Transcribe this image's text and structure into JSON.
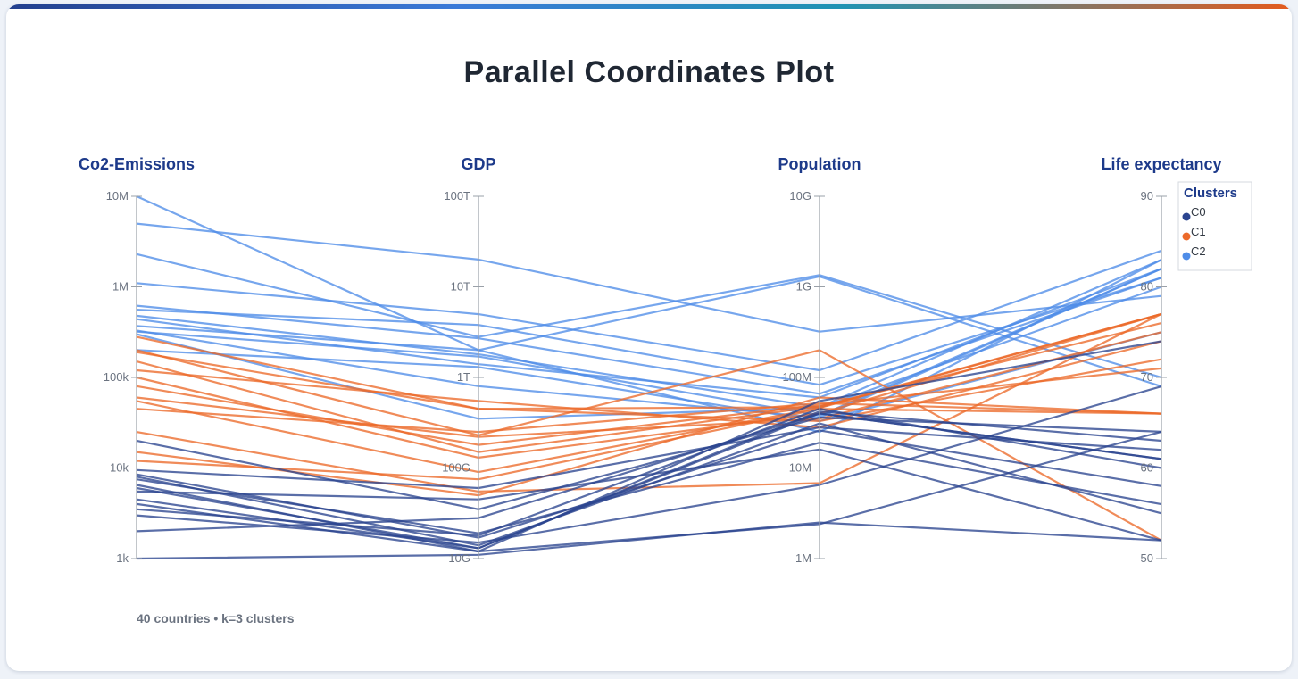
{
  "title": "Parallel Coordinates Plot",
  "footer": "40 countries • k=3 clusters",
  "colors": {
    "C0": "#2b4590",
    "C1": "#ec6a2a",
    "C2": "#4f8de8",
    "axis": "#9aa0a8",
    "accent_gradient": [
      "#23408e",
      "#3a7ad8",
      "#1f93b3",
      "#e45a1c"
    ]
  },
  "chart_data": {
    "type": "parallel-coordinates",
    "title": "Parallel Coordinates Plot",
    "axes": [
      {
        "name": "Co2-Emissions",
        "scale": "log",
        "range": [
          1000,
          10000000
        ],
        "ticks": [
          {
            "value": 10000000,
            "label": "10M"
          },
          {
            "value": 1000000,
            "label": "1M"
          },
          {
            "value": 100000,
            "label": "100k"
          },
          {
            "value": 10000,
            "label": "10k"
          },
          {
            "value": 1000,
            "label": "1k"
          }
        ]
      },
      {
        "name": "GDP",
        "scale": "log",
        "range": [
          10000000000,
          100000000000000
        ],
        "ticks": [
          {
            "value": 100000000000000,
            "label": "100T"
          },
          {
            "value": 10000000000000,
            "label": "10T"
          },
          {
            "value": 1000000000000,
            "label": "1T"
          },
          {
            "value": 100000000000,
            "label": "100G"
          },
          {
            "value": 10000000000,
            "label": "10G"
          }
        ]
      },
      {
        "name": "Population",
        "scale": "log",
        "range": [
          1000000,
          10000000000
        ],
        "ticks": [
          {
            "value": 10000000000,
            "label": "10G"
          },
          {
            "value": 1000000000,
            "label": "1G"
          },
          {
            "value": 100000000,
            "label": "100M"
          },
          {
            "value": 10000000,
            "label": "10M"
          },
          {
            "value": 1000000,
            "label": "1M"
          }
        ]
      },
      {
        "name": "Life expectancy",
        "scale": "linear",
        "range": [
          50,
          90
        ],
        "ticks": [
          {
            "value": 90,
            "label": "90"
          },
          {
            "value": 80,
            "label": "80"
          },
          {
            "value": 70,
            "label": "70"
          },
          {
            "value": 60,
            "label": "60"
          },
          {
            "value": 50,
            "label": "50"
          }
        ]
      }
    ],
    "legend": {
      "title": "Clusters",
      "position": "top-right",
      "entries": [
        "C0",
        "C1",
        "C2"
      ]
    },
    "series": [
      {
        "cluster": "C2",
        "values": [
          10000000,
          2000000000000,
          1300000000,
          69
        ]
      },
      {
        "cluster": "C2",
        "values": [
          5000000,
          20000000000000,
          320000000,
          79
        ]
      },
      {
        "cluster": "C2",
        "values": [
          2300000,
          2800000000000,
          1350000000,
          70
        ]
      },
      {
        "cluster": "C2",
        "values": [
          1100000,
          5000000000000,
          120000000,
          84
        ]
      },
      {
        "cluster": "C2",
        "values": [
          620000,
          2700000000000,
          66000000,
          81
        ]
      },
      {
        "cluster": "C2",
        "values": [
          560000,
          3800000000000,
          83000000,
          81
        ]
      },
      {
        "cluster": "C2",
        "values": [
          480000,
          1800000000000,
          47000000,
          83
        ]
      },
      {
        "cluster": "C2",
        "values": [
          440000,
          1400000000000,
          60000000,
          82
        ]
      },
      {
        "cluster": "C2",
        "values": [
          370000,
          2000000000000,
          25000000,
          83
        ]
      },
      {
        "cluster": "C2",
        "values": [
          330000,
          800000000000,
          36000000,
          82
        ]
      },
      {
        "cluster": "C2",
        "values": [
          320000,
          1700000000000,
          38000000,
          82
        ]
      },
      {
        "cluster": "C2",
        "values": [
          300000,
          350000000000,
          46000000,
          80
        ]
      },
      {
        "cluster": "C2",
        "values": [
          200000,
          1300000000000,
          33000000,
          75
        ]
      },
      {
        "cluster": "C1",
        "values": [
          280000,
          450000000000,
          47000000,
          77
        ]
      },
      {
        "cluster": "C1",
        "values": [
          200000,
          230000000000,
          200000000,
          52
        ]
      },
      {
        "cluster": "C1",
        "values": [
          190000,
          450000000000,
          33000000,
          72
        ]
      },
      {
        "cluster": "C1",
        "values": [
          150000,
          150000000000,
          48000000,
          76
        ]
      },
      {
        "cluster": "C1",
        "values": [
          120000,
          550000000000,
          28000000,
          74
        ]
      },
      {
        "cluster": "C1",
        "values": [
          100000,
          130000000000,
          40000000,
          77
        ]
      },
      {
        "cluster": "C1",
        "values": [
          80000,
          180000000000,
          50000000,
          71
        ]
      },
      {
        "cluster": "C1",
        "values": [
          60000,
          220000000000,
          35000000,
          75
        ]
      },
      {
        "cluster": "C1",
        "values": [
          55000,
          90000000000,
          46000000,
          77
        ]
      },
      {
        "cluster": "C1",
        "values": [
          45000,
          250000000000,
          52000000,
          66
        ]
      },
      {
        "cluster": "C1",
        "values": [
          25000,
          55000000000,
          6800000,
          77
        ]
      },
      {
        "cluster": "C1",
        "values": [
          15000,
          50000000000,
          60000000,
          66
        ]
      },
      {
        "cluster": "C1",
        "values": [
          12000,
          75000000000,
          45000000,
          66
        ]
      },
      {
        "cluster": "C0",
        "values": [
          20000,
          35000000000,
          36000000,
          64
        ]
      },
      {
        "cluster": "C0",
        "values": [
          9500,
          60000000000,
          28000000,
          62
        ]
      },
      {
        "cluster": "C0",
        "values": [
          8500,
          17000000000,
          26000000,
          58
        ]
      },
      {
        "cluster": "C0",
        "values": [
          8000,
          14000000000,
          31000000,
          55
        ]
      },
      {
        "cluster": "C0",
        "values": [
          7500,
          19000000000,
          19000000,
          56
        ]
      },
      {
        "cluster": "C0",
        "values": [
          6000,
          13000000000,
          42000000,
          63
        ]
      },
      {
        "cluster": "C0",
        "values": [
          5500,
          45000000000,
          16000000,
          52
        ]
      },
      {
        "cluster": "C0",
        "values": [
          4000,
          12000000000,
          2400000,
          64
        ]
      },
      {
        "cluster": "C0",
        "values": [
          3500,
          18000000000,
          45000000,
          60
        ]
      },
      {
        "cluster": "C0",
        "values": [
          3000,
          15000000000,
          6500000,
          69
        ]
      },
      {
        "cluster": "C0",
        "values": [
          2000,
          28000000000,
          40000000,
          61
        ]
      },
      {
        "cluster": "C0",
        "values": [
          1000,
          11000000000,
          2500000,
          52
        ]
      },
      {
        "cluster": "C0",
        "values": [
          6500,
          12000000000,
          55000000,
          74
        ]
      },
      {
        "cluster": "C0",
        "values": [
          4500,
          13000000000,
          40000000,
          61
        ]
      }
    ]
  }
}
